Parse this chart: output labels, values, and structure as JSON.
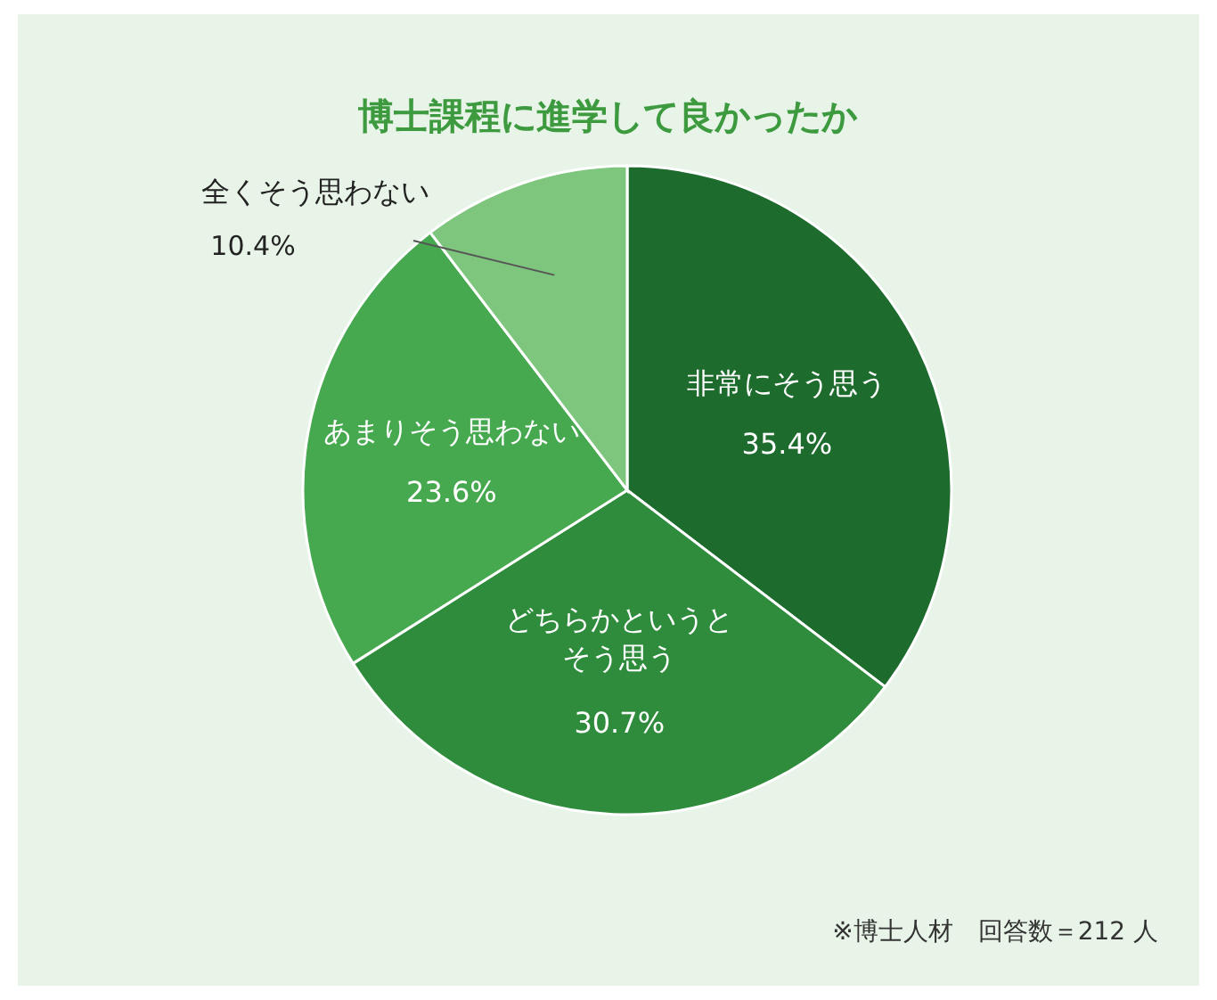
{
  "chart_data": {
    "type": "pie",
    "title": "博士課程に進学して良かったか",
    "categories": [
      "非常にそう思う",
      "どちらかというとそう思う",
      "あまりそう思わない",
      "全くそう思わない"
    ],
    "values": [
      35.4,
      30.7,
      23.6,
      10.4
    ],
    "value_labels": [
      "35.4%",
      "30.7%",
      "23.6%",
      "10.4%"
    ],
    "colors": [
      "#1d6b2d",
      "#2e8c3c",
      "#46a94f",
      "#7ec67d"
    ],
    "annotations": [
      "※博士人材　回答数＝212 人"
    ]
  }
}
